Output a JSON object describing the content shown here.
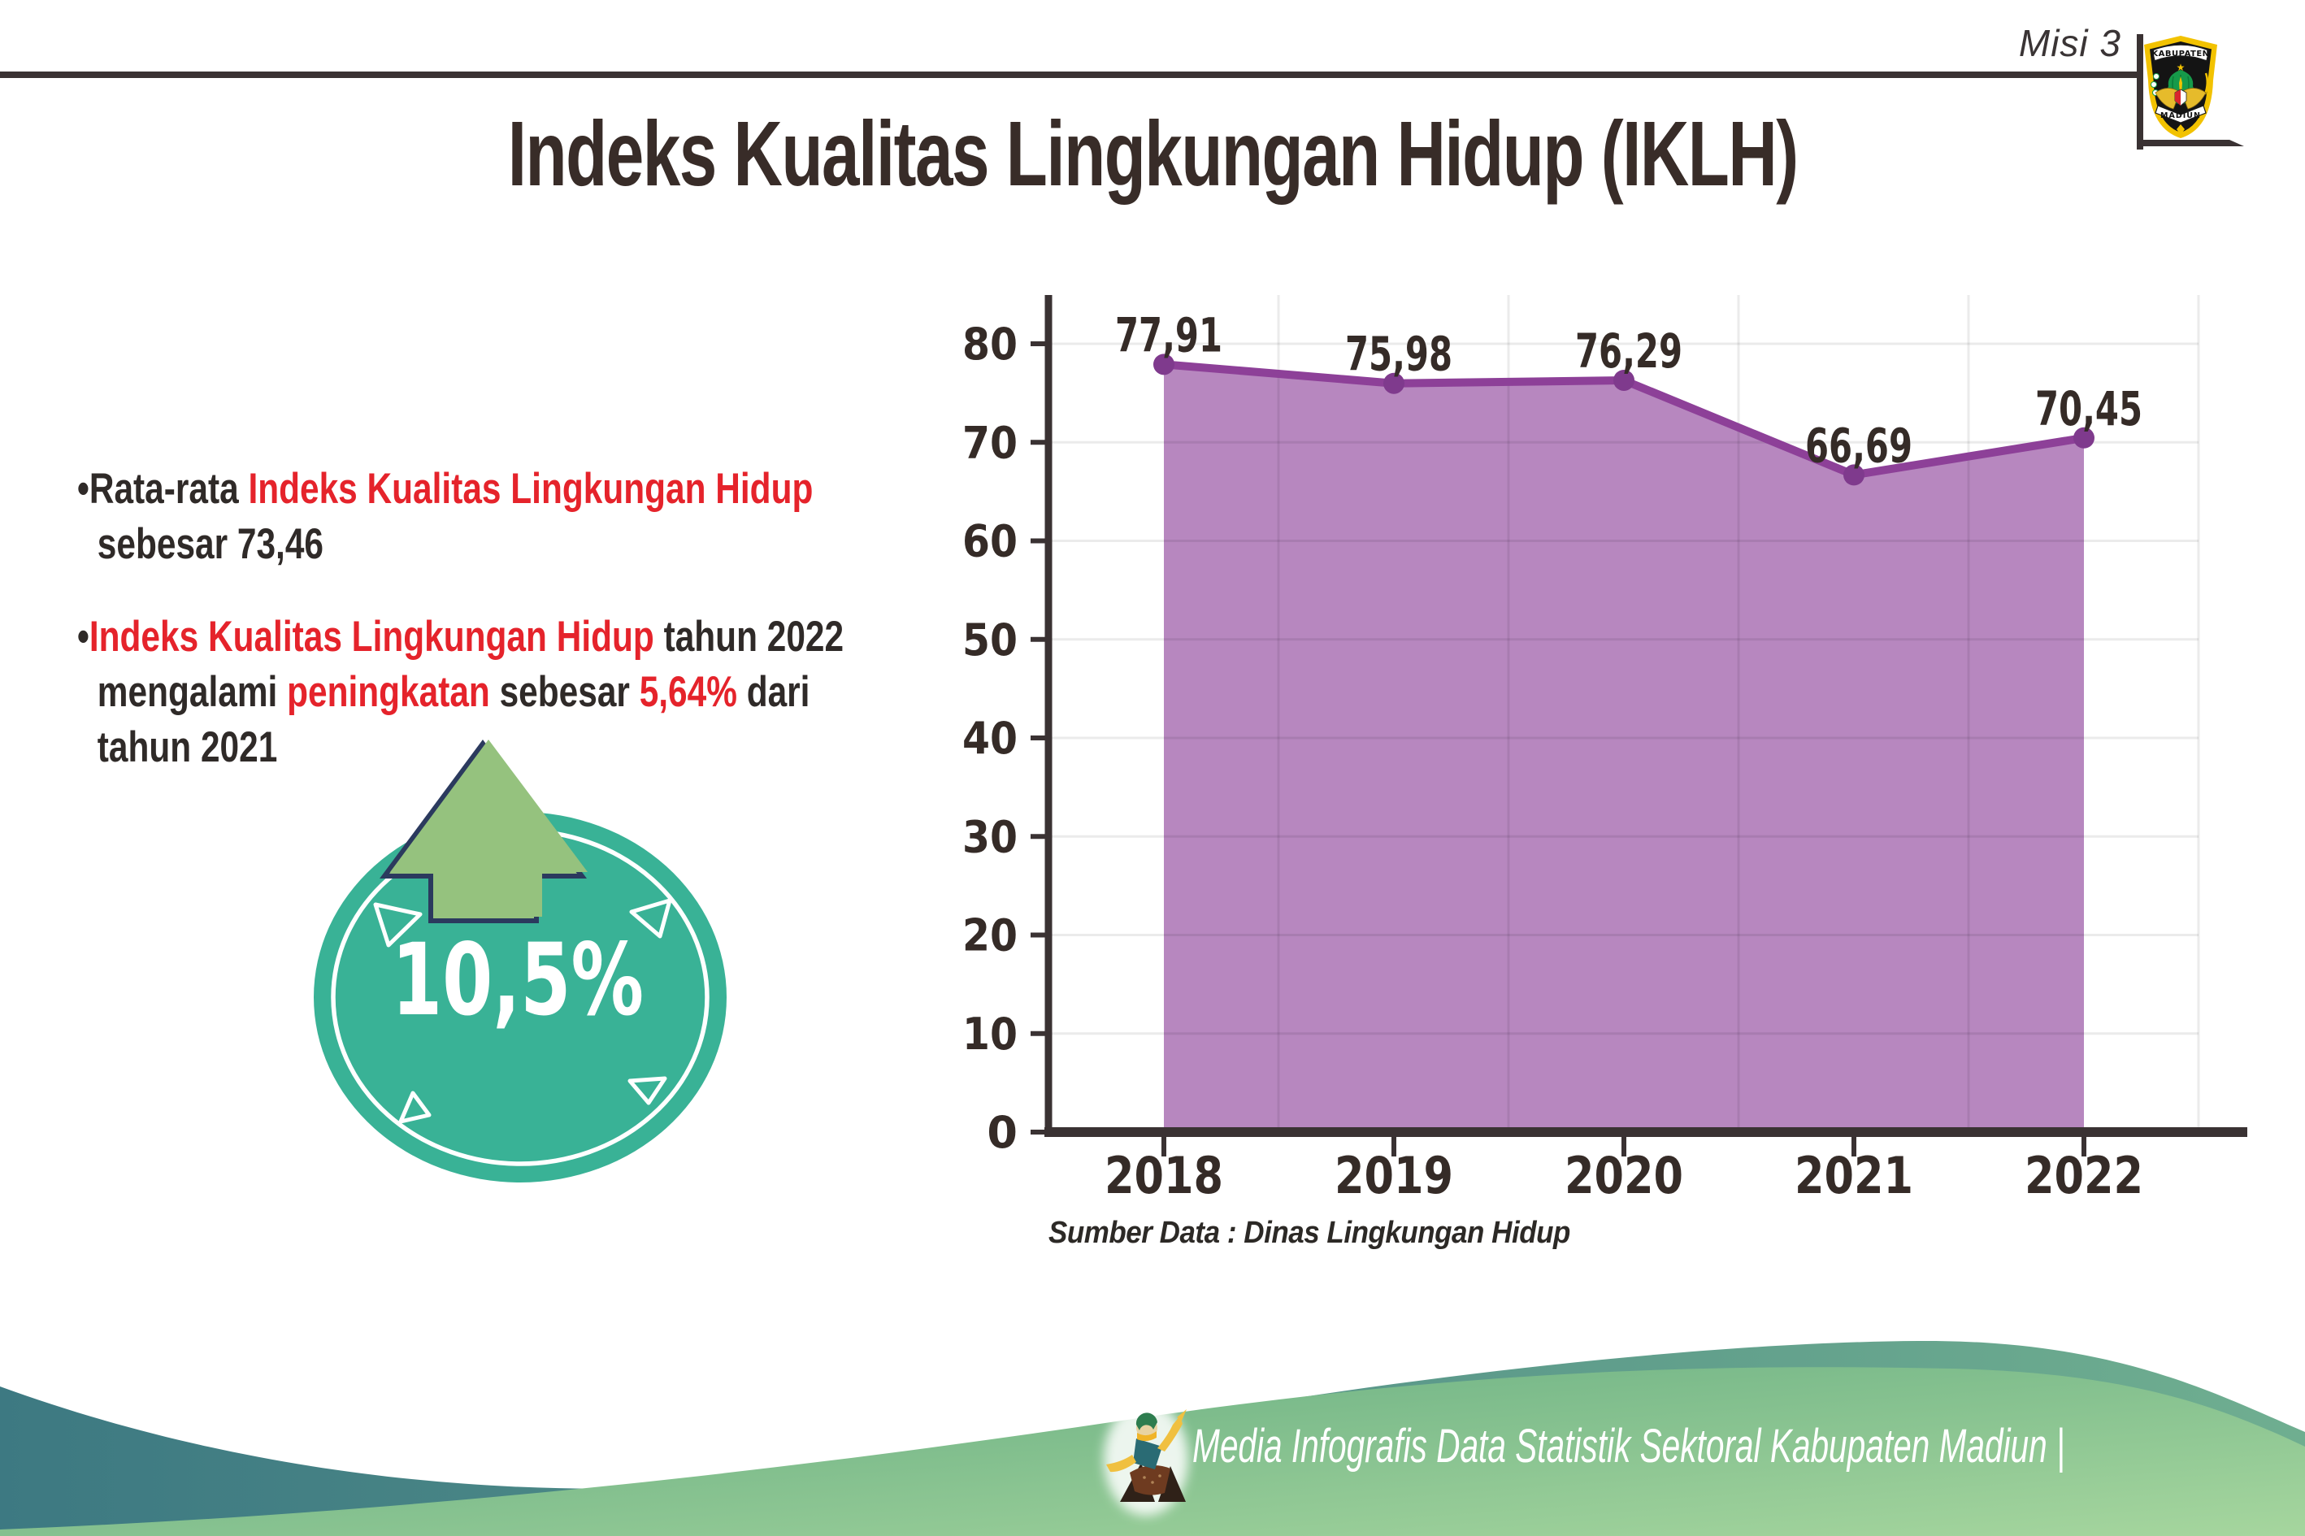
{
  "header": {
    "misi_label": "Misi 3",
    "logo": {
      "top_text": "KABUPATEN",
      "bottom_text": "MADIUN"
    }
  },
  "title": "Indeks Kualitas Lingkungan Hidup (IKLH)",
  "bullets": {
    "marker": "•",
    "b1": {
      "black1": "Rata-rata ",
      "red1": "Indeks Kualitas Lingkungan Hidup",
      "black2": "sebesar 73,46"
    },
    "b2": {
      "red1": "Indeks Kualitas Lingkungan Hidup",
      "black1": " tahun 2022",
      "black2": "mengalami ",
      "red2": "peningkatan",
      "black3": " sebesar ",
      "red3": "5,64%",
      "black4": " dari",
      "black5": "tahun 2021"
    }
  },
  "badge": {
    "value": "10,5%"
  },
  "chart_data": {
    "type": "area",
    "title": "",
    "categories": [
      "2018",
      "2019",
      "2020",
      "2021",
      "2022"
    ],
    "values": [
      77.91,
      75.98,
      76.29,
      66.69,
      70.45
    ],
    "value_labels": [
      "77,91",
      "75,98",
      "76,29",
      "66,69",
      "70,45"
    ],
    "xlabel": "",
    "ylabel": "",
    "ylim": [
      0,
      85
    ],
    "y_ticks": [
      0,
      10,
      20,
      30,
      40,
      50,
      60,
      70,
      80
    ],
    "grid": true,
    "legend": false,
    "colors": {
      "area": "#b787bf",
      "line": "#8d4098",
      "point": "#7f3a8d"
    }
  },
  "source": "Sumber Data : Dinas Lingkungan Hidup",
  "footer": {
    "credit": "Media Infografis Data Statistik Sektoral Kabupaten Madiun |"
  },
  "colors": {
    "accent_red": "#e5232b",
    "text_dark": "#352b27",
    "badge_teal": "#39b296",
    "arrow_green": "#95c27e",
    "footer_teal_dark": "#3d7982",
    "footer_teal_light": "#6fae90",
    "footer_green_dark": "#63ab80",
    "footer_green_light": "#a6d69e"
  }
}
